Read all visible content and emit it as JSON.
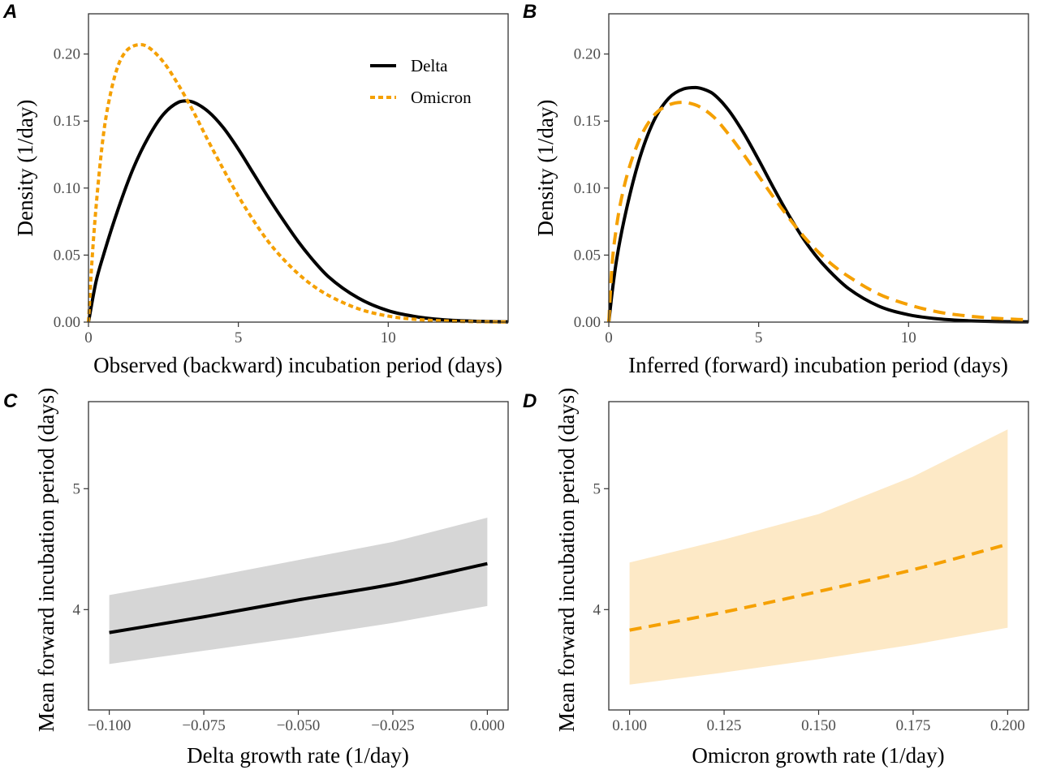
{
  "colors": {
    "delta": "#000000",
    "omicron": "#F5A000",
    "delta_ribbon": "#D6D6D6",
    "omicron_ribbon": "#FDE9C6"
  },
  "chart_data": [
    {
      "panel": "A",
      "type": "line",
      "xlabel": "Observed (backward) incubation period (days)",
      "ylabel": "Density (1/day)",
      "xlim": [
        0,
        14
      ],
      "ylim": [
        0,
        0.23
      ],
      "xticks": [
        0,
        5,
        10
      ],
      "yticks": [
        0.0,
        0.05,
        0.1,
        0.15,
        0.2
      ],
      "xtick_labels": [
        "0",
        "5",
        "10"
      ],
      "ytick_labels": [
        "0.00",
        "0.05",
        "0.10",
        "0.15",
        "0.20"
      ],
      "grid": false,
      "legend": {
        "position": "top-right",
        "entries": [
          "Delta",
          "Omicron"
        ]
      },
      "series": [
        {
          "name": "Delta",
          "style": "solid",
          "x": [
            0,
            0.25,
            0.5,
            1,
            1.5,
            2,
            2.5,
            3,
            3.25,
            3.5,
            4,
            4.5,
            5,
            5.5,
            6,
            6.5,
            7,
            7.5,
            8,
            9,
            10,
            11,
            12,
            13,
            14
          ],
          "y": [
            0,
            0.03,
            0.05,
            0.085,
            0.115,
            0.138,
            0.155,
            0.164,
            0.165,
            0.164,
            0.157,
            0.145,
            0.129,
            0.111,
            0.093,
            0.076,
            0.06,
            0.046,
            0.034,
            0.018,
            0.0085,
            0.0038,
            0.0015,
            0.0006,
            0.0002
          ]
        },
        {
          "name": "Omicron",
          "style": "dotted",
          "x": [
            0,
            0.1,
            0.25,
            0.5,
            0.75,
            1,
            1.25,
            1.5,
            1.75,
            2,
            2.5,
            3,
            3.5,
            4,
            4.5,
            5,
            5.5,
            6,
            6.5,
            7,
            7.5,
            8,
            9,
            10,
            11,
            12,
            13,
            14
          ],
          "y": [
            0,
            0.04,
            0.085,
            0.14,
            0.172,
            0.192,
            0.202,
            0.206,
            0.207,
            0.205,
            0.194,
            0.177,
            0.157,
            0.135,
            0.114,
            0.094,
            0.076,
            0.06,
            0.047,
            0.036,
            0.027,
            0.02,
            0.01,
            0.0045,
            0.0019,
            0.0008,
            0.0003,
            0.0001
          ]
        }
      ]
    },
    {
      "panel": "B",
      "type": "line",
      "xlabel": "Inferred (forward) incubation period (days)",
      "ylabel": "Density (1/day)",
      "xlim": [
        0,
        14
      ],
      "ylim": [
        0,
        0.23
      ],
      "xticks": [
        0,
        5,
        10
      ],
      "yticks": [
        0.0,
        0.05,
        0.1,
        0.15,
        0.2
      ],
      "xtick_labels": [
        "0",
        "5",
        "10"
      ],
      "ytick_labels": [
        "0.00",
        "0.05",
        "0.10",
        "0.15",
        "0.20"
      ],
      "grid": false,
      "series": [
        {
          "name": "Delta",
          "style": "solid",
          "x": [
            0,
            0.1,
            0.25,
            0.5,
            1,
            1.5,
            2,
            2.5,
            2.9,
            3.25,
            3.5,
            4,
            4.5,
            5,
            5.5,
            6,
            6.5,
            7,
            7.5,
            8,
            9,
            10,
            11,
            12,
            13,
            14
          ],
          "y": [
            0,
            0.02,
            0.045,
            0.075,
            0.12,
            0.15,
            0.167,
            0.174,
            0.175,
            0.173,
            0.17,
            0.158,
            0.141,
            0.121,
            0.1,
            0.08,
            0.062,
            0.047,
            0.035,
            0.025,
            0.012,
            0.0055,
            0.0024,
            0.001,
            0.0004,
            0.0002
          ]
        },
        {
          "name": "Omicron",
          "style": "dashed",
          "x": [
            0,
            0.1,
            0.25,
            0.5,
            1,
            1.5,
            2,
            2.5,
            2.75,
            3,
            3.5,
            4,
            4.5,
            5,
            5.5,
            6,
            6.5,
            7,
            7.5,
            8,
            9,
            10,
            11,
            12,
            13,
            14
          ],
          "y": [
            0,
            0.04,
            0.07,
            0.1,
            0.135,
            0.154,
            0.162,
            0.164,
            0.163,
            0.161,
            0.153,
            0.14,
            0.125,
            0.109,
            0.093,
            0.078,
            0.064,
            0.052,
            0.042,
            0.034,
            0.021,
            0.013,
            0.0075,
            0.0045,
            0.0027,
            0.0017
          ]
        }
      ]
    },
    {
      "panel": "C",
      "type": "line",
      "xlabel": "Delta growth rate (1/day)",
      "ylabel": "Mean forward incubation period (days)",
      "xlim": [
        -0.1055,
        0.0055
      ],
      "ylim": [
        3.17,
        5.72
      ],
      "xticks": [
        -0.1,
        -0.075,
        -0.05,
        -0.025,
        0.0
      ],
      "yticks": [
        4,
        5
      ],
      "xtick_labels": [
        "−0.100",
        "−0.075",
        "−0.050",
        "−0.025",
        "0.000"
      ],
      "ytick_labels": [
        "4",
        "5"
      ],
      "grid": false,
      "series": [
        {
          "name": "Delta",
          "style": "solid",
          "x": [
            -0.1,
            -0.075,
            -0.05,
            -0.025,
            0.0
          ],
          "y": [
            3.81,
            3.94,
            4.08,
            4.21,
            4.38
          ],
          "lower": [
            3.55,
            3.66,
            3.77,
            3.89,
            4.03
          ],
          "upper": [
            4.12,
            4.26,
            4.41,
            4.56,
            4.76
          ]
        }
      ]
    },
    {
      "panel": "D",
      "type": "line",
      "xlabel": "Omicron growth rate (1/day)",
      "ylabel": "Mean forward incubation period (days)",
      "xlim": [
        0.0945,
        0.2055
      ],
      "ylim": [
        3.17,
        5.72
      ],
      "xticks": [
        0.1,
        0.125,
        0.15,
        0.175,
        0.2
      ],
      "yticks": [
        4,
        5
      ],
      "xtick_labels": [
        "0.100",
        "0.125",
        "0.150",
        "0.175",
        "0.200"
      ],
      "ytick_labels": [
        "4",
        "5"
      ],
      "grid": false,
      "series": [
        {
          "name": "Omicron",
          "style": "dashed",
          "x": [
            0.1,
            0.125,
            0.15,
            0.175,
            0.2
          ],
          "y": [
            3.83,
            3.98,
            4.15,
            4.33,
            4.54
          ],
          "lower": [
            3.38,
            3.48,
            3.59,
            3.71,
            3.85
          ],
          "upper": [
            4.39,
            4.58,
            4.79,
            5.1,
            5.49
          ]
        }
      ]
    }
  ]
}
